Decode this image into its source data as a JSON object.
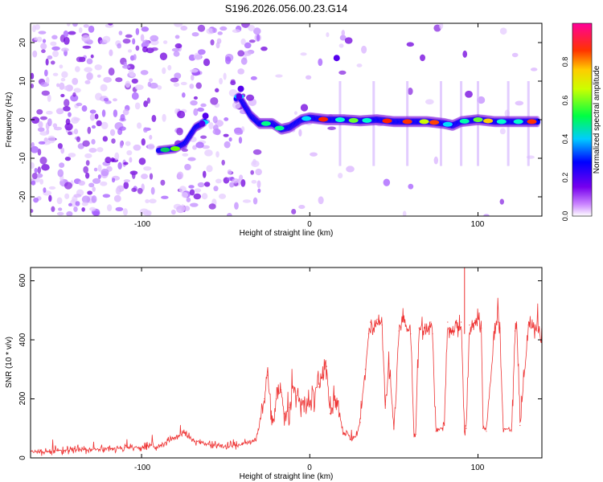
{
  "figure": {
    "title": "S196.2026.056.00.23.G14"
  },
  "colorbar": {
    "label": "Normalized spectral amplitude",
    "ticks": [
      "0.0",
      "0.2",
      "0.4",
      "0.6",
      "0.8"
    ],
    "range": [
      0,
      1
    ]
  },
  "chart_data": [
    {
      "type": "heatmap",
      "title": "",
      "xlabel": "Height of straight line (km)",
      "ylabel": "Frequency (Hz)",
      "xlim": [
        -166,
        138
      ],
      "ylim": [
        -25,
        25
      ],
      "xticks": [
        "-100",
        "0",
        "100"
      ],
      "yticks": [
        "-20",
        "-10",
        "0",
        "10",
        "20"
      ],
      "colormap": "rainbow (white → violet → blue → cyan → green → yellow → red → magenta)",
      "grid": false,
      "ridge": {
        "description": "dominant spectral line (frequency vs height)",
        "x": [
          -90,
          -80,
          -74,
          -68,
          -64,
          -42,
          -35,
          -30,
          -22,
          -17,
          -12,
          -5,
          0,
          10,
          20,
          30,
          40,
          50,
          60,
          70,
          80,
          85,
          90,
          100,
          110,
          120,
          130,
          136
        ],
        "y": [
          -8,
          -7.5,
          -6,
          -2,
          -1,
          6,
          1,
          -1,
          -1,
          -2.5,
          -2,
          0,
          0.5,
          0,
          0,
          -0.3,
          0,
          -0.5,
          -0.5,
          -0.5,
          -1,
          -1.5,
          -0.5,
          0,
          -0.5,
          -0.5,
          -0.5,
          -0.5
        ]
      }
    },
    {
      "type": "line",
      "title": "",
      "xlabel": "Height of straight line (km)",
      "ylabel": "SNR (10 * v/v)",
      "xlim": [
        -166,
        138
      ],
      "ylim": [
        0,
        645
      ],
      "xticks": [
        "-100",
        "0",
        "100"
      ],
      "yticks": [
        "0",
        "200",
        "400",
        "600"
      ],
      "grid": false,
      "series": [
        {
          "color": "#ee3333",
          "x": [
            -166,
            -150,
            -130,
            -110,
            -90,
            -80,
            -74,
            -70,
            -60,
            -50,
            -40,
            -32,
            -27,
            -25,
            -22,
            -20,
            -17,
            -15,
            -12,
            -10,
            -5,
            0,
            5,
            8,
            10,
            12,
            15,
            18,
            20,
            22,
            25,
            28,
            30,
            33,
            35,
            36,
            38,
            40,
            43,
            45,
            47,
            50,
            53,
            55,
            57,
            60,
            62,
            63,
            65,
            70,
            72,
            73,
            75,
            80,
            82,
            83,
            85,
            90,
            92,
            93,
            95,
            100,
            102,
            103,
            105,
            110,
            112,
            113,
            115,
            120,
            122,
            123,
            125,
            130,
            135,
            138
          ],
          "y": [
            20,
            25,
            30,
            35,
            40,
            70,
            85,
            60,
            45,
            40,
            45,
            60,
            200,
            280,
            120,
            200,
            230,
            150,
            170,
            240,
            190,
            180,
            240,
            280,
            310,
            150,
            200,
            140,
            80,
            90,
            60,
            80,
            120,
            300,
            420,
            460,
            440,
            470,
            450,
            180,
            320,
            100,
            430,
            470,
            450,
            420,
            80,
            80,
            440,
            430,
            460,
            420,
            90,
            110,
            460,
            440,
            430,
            460,
            90,
            100,
            450,
            470,
            440,
            100,
            90,
            440,
            460,
            440,
            100,
            90,
            430,
            450,
            110,
            450,
            430,
            420
          ]
        }
      ]
    }
  ]
}
